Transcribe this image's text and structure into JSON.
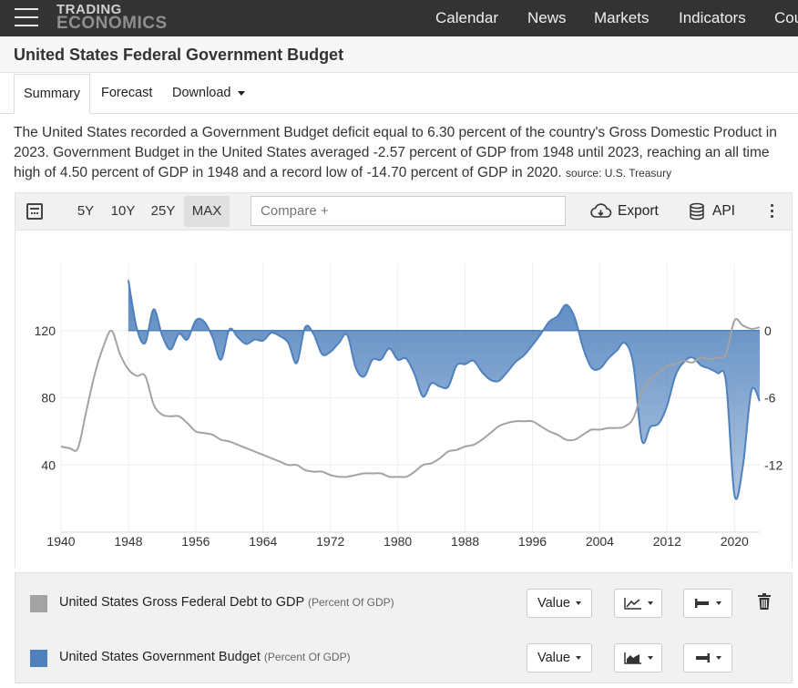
{
  "header": {
    "logo_line1": "TRADING",
    "logo_line2": "ECONOMICS",
    "nav": [
      "Calendar",
      "News",
      "Markets",
      "Indicators",
      "Cou"
    ]
  },
  "page": {
    "title": "United States Federal Government Budget",
    "tabs": [
      "Summary",
      "Forecast",
      "Download"
    ],
    "description": "The United States recorded a Government Budget deficit equal to 6.30 percent of the country's Gross Domestic Product in 2023. Government Budget in the United States averaged -2.57 percent of GDP from 1948 until 2023, reaching an all time high of 4.50 percent of GDP in 1948 and a record low of -14.70 percent of GDP in 2020.",
    "source": "source: U.S. Treasury"
  },
  "toolbar": {
    "ranges": [
      "5Y",
      "10Y",
      "25Y",
      "MAX"
    ],
    "selected_range": "MAX",
    "compare_placeholder": "Compare +",
    "export_label": "Export",
    "api_label": "API"
  },
  "legend": [
    {
      "name": "United States Gross Federal Debt to GDP",
      "unit": "(Percent Of GDP)",
      "color": "#a3a3a3",
      "mode": "Value",
      "chart_icon": "line-chart-icon",
      "axis_icon": "left-axis-icon"
    },
    {
      "name": "United States Government Budget",
      "unit": "(Percent Of GDP)",
      "color": "#4f81bd",
      "mode": "Value",
      "chart_icon": "area-chart-icon",
      "axis_icon": "right-axis-icon"
    }
  ],
  "chart_data": {
    "type": "line",
    "title": "",
    "xlabel": "",
    "ylabel": "",
    "x_ticks": [
      1940,
      1948,
      1956,
      1964,
      1972,
      1980,
      1988,
      1996,
      2004,
      2012,
      2020
    ],
    "xlim": [
      1940,
      2023
    ],
    "y_left_ticks": [
      40,
      80,
      120
    ],
    "y_left_lim": [
      0,
      160
    ],
    "y_right_ticks": [
      0,
      -6,
      -12
    ],
    "y_right_lim": [
      -18,
      6
    ],
    "series": [
      {
        "name": "United States Gross Federal Debt to GDP",
        "axis": "left",
        "x": [
          1940,
          1941,
          1942,
          1943,
          1944,
          1945,
          1946,
          1947,
          1948,
          1949,
          1950,
          1951,
          1952,
          1953,
          1954,
          1955,
          1956,
          1957,
          1958,
          1959,
          1960,
          1961,
          1962,
          1963,
          1964,
          1965,
          1966,
          1967,
          1968,
          1969,
          1970,
          1971,
          1972,
          1973,
          1974,
          1975,
          1976,
          1977,
          1978,
          1979,
          1980,
          1981,
          1982,
          1983,
          1984,
          1985,
          1986,
          1987,
          1988,
          1989,
          1990,
          1991,
          1992,
          1993,
          1994,
          1995,
          1996,
          1997,
          1998,
          1999,
          2000,
          2001,
          2002,
          2003,
          2004,
          2005,
          2006,
          2007,
          2008,
          2009,
          2010,
          2011,
          2012,
          2013,
          2014,
          2015,
          2016,
          2017,
          2018,
          2019,
          2020,
          2021,
          2022,
          2023
        ],
        "values": [
          51,
          50,
          50,
          72,
          94,
          110,
          120,
          106,
          97,
          93,
          93,
          76,
          70,
          69,
          69,
          65,
          60,
          59,
          58,
          55,
          54,
          52,
          50,
          48,
          46,
          44,
          42,
          40,
          40,
          37,
          36,
          36,
          34,
          33,
          33,
          34,
          35,
          35,
          35,
          33,
          33,
          33,
          36,
          40,
          41,
          44,
          48,
          49,
          51,
          52,
          55,
          59,
          63,
          65,
          66,
          66,
          66,
          63,
          60,
          58,
          55,
          55,
          58,
          61,
          61,
          62,
          62,
          63,
          68,
          83,
          91,
          95,
          99,
          100,
          102,
          101,
          104,
          103,
          104,
          106,
          126,
          123,
          121,
          122
        ]
      },
      {
        "name": "United States Government Budget",
        "axis": "right",
        "x": [
          1948,
          1949,
          1950,
          1951,
          1952,
          1953,
          1954,
          1955,
          1956,
          1957,
          1958,
          1959,
          1960,
          1961,
          1962,
          1963,
          1964,
          1965,
          1966,
          1967,
          1968,
          1969,
          1970,
          1971,
          1972,
          1973,
          1974,
          1975,
          1976,
          1977,
          1978,
          1979,
          1980,
          1981,
          1982,
          1983,
          1984,
          1985,
          1986,
          1987,
          1988,
          1989,
          1990,
          1991,
          1992,
          1993,
          1994,
          1995,
          1996,
          1997,
          1998,
          1999,
          2000,
          2001,
          2002,
          2003,
          2004,
          2005,
          2006,
          2007,
          2008,
          2009,
          2010,
          2011,
          2012,
          2013,
          2014,
          2015,
          2016,
          2017,
          2018,
          2019,
          2020,
          2021,
          2022,
          2023
        ],
        "values": [
          4.5,
          0.2,
          -1.1,
          1.9,
          -0.4,
          -1.7,
          -0.3,
          -0.8,
          0.9,
          0.8,
          -0.6,
          -2.6,
          0.1,
          -0.6,
          -1.2,
          -0.8,
          -0.9,
          -0.2,
          -0.5,
          -1.1,
          -2.9,
          0.3,
          -0.3,
          -2.1,
          -1.9,
          -1.1,
          -0.4,
          -3.3,
          -4.1,
          -2.6,
          -2.6,
          -1.6,
          -2.6,
          -2.5,
          -3.9,
          -5.9,
          -4.7,
          -5.0,
          -5.0,
          -3.1,
          -3.0,
          -2.7,
          -3.7,
          -4.4,
          -4.5,
          -3.7,
          -2.8,
          -2.2,
          -1.3,
          -0.3,
          0.8,
          1.3,
          2.3,
          1.2,
          -1.5,
          -3.3,
          -3.4,
          -2.5,
          -1.8,
          -1.1,
          -3.1,
          -9.8,
          -8.6,
          -8.3,
          -6.7,
          -4.0,
          -2.8,
          -2.4,
          -3.1,
          -3.4,
          -3.8,
          -4.6,
          -14.7,
          -12.1,
          -5.4,
          -6.3
        ]
      }
    ],
    "grid": true,
    "legend_position": "bottom"
  }
}
